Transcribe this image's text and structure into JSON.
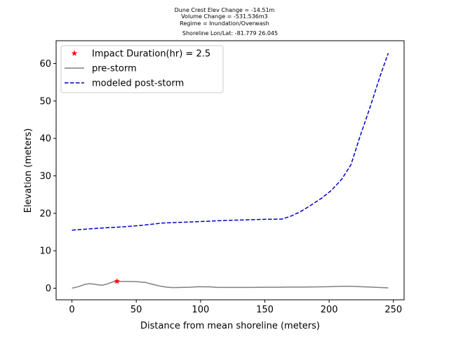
{
  "chart_data": {
    "type": "line",
    "title_lines": [
      "Dune Crest Elev Change = -14.51m",
      "Volume Change = -531.536m3",
      "Regime = Inundation/Overwash",
      "Shoreline Lon/Lat: -81.779 26.045"
    ],
    "xlabel": "Distance from mean shoreline (meters)",
    "ylabel": "Elevation (meters)",
    "xlim": [
      -12.3,
      258.3
    ],
    "ylim": [
      -3.1,
      66.1
    ],
    "xticks": [
      0,
      50,
      100,
      150,
      200,
      250
    ],
    "yticks": [
      0,
      10,
      20,
      30,
      40,
      50,
      60
    ],
    "xtick_labels": [
      "0",
      "50",
      "100",
      "150",
      "200",
      "250"
    ],
    "ytick_labels": [
      "0",
      "10",
      "20",
      "30",
      "40",
      "50",
      "60"
    ],
    "grid": false,
    "legend_position": "top-left",
    "series": [
      {
        "name": "pre-storm",
        "style": "solid",
        "color": "#808080",
        "points": [
          [
            0,
            0.0
          ],
          [
            5,
            0.4
          ],
          [
            10,
            1.0
          ],
          [
            13,
            1.2
          ],
          [
            17,
            1.1
          ],
          [
            20,
            0.9
          ],
          [
            24,
            0.8
          ],
          [
            28,
            1.2
          ],
          [
            32,
            1.7
          ],
          [
            35,
            1.8
          ],
          [
            40,
            1.8
          ],
          [
            50,
            1.75
          ],
          [
            57,
            1.55
          ],
          [
            63,
            1.0
          ],
          [
            68,
            0.6
          ],
          [
            73,
            0.3
          ],
          [
            78,
            0.15
          ],
          [
            85,
            0.2
          ],
          [
            92,
            0.25
          ],
          [
            98,
            0.4
          ],
          [
            108,
            0.35
          ],
          [
            113,
            0.2
          ],
          [
            125,
            0.2
          ],
          [
            140,
            0.2
          ],
          [
            150,
            0.25
          ],
          [
            160,
            0.25
          ],
          [
            170,
            0.3
          ],
          [
            180,
            0.3
          ],
          [
            190,
            0.35
          ],
          [
            200,
            0.4
          ],
          [
            210,
            0.5
          ],
          [
            217,
            0.5
          ],
          [
            225,
            0.4
          ],
          [
            235,
            0.25
          ],
          [
            246,
            0.1
          ]
        ]
      },
      {
        "name": "modeled post-storm",
        "style": "dashed",
        "color": "#0000cc",
        "points": [
          [
            0,
            15.5
          ],
          [
            20,
            16.0
          ],
          [
            40,
            16.4
          ],
          [
            55,
            16.8
          ],
          [
            65,
            17.2
          ],
          [
            70,
            17.4
          ],
          [
            85,
            17.6
          ],
          [
            100,
            17.8
          ],
          [
            120,
            18.1
          ],
          [
            140,
            18.3
          ],
          [
            150,
            18.4
          ],
          [
            163,
            18.45
          ],
          [
            170,
            19.2
          ],
          [
            178,
            20.5
          ],
          [
            186,
            22.2
          ],
          [
            194,
            24.0
          ],
          [
            202,
            26.2
          ],
          [
            210,
            29.2
          ],
          [
            217,
            33.0
          ],
          [
            224,
            40.5
          ],
          [
            232,
            48.5
          ],
          [
            240,
            57.0
          ],
          [
            246,
            62.8
          ]
        ]
      }
    ],
    "markers": [
      {
        "name": "Impact Duration(hr) = 2.5",
        "symbol": "star",
        "color": "#ff0000",
        "x": 35,
        "y": 1.85
      }
    ]
  }
}
